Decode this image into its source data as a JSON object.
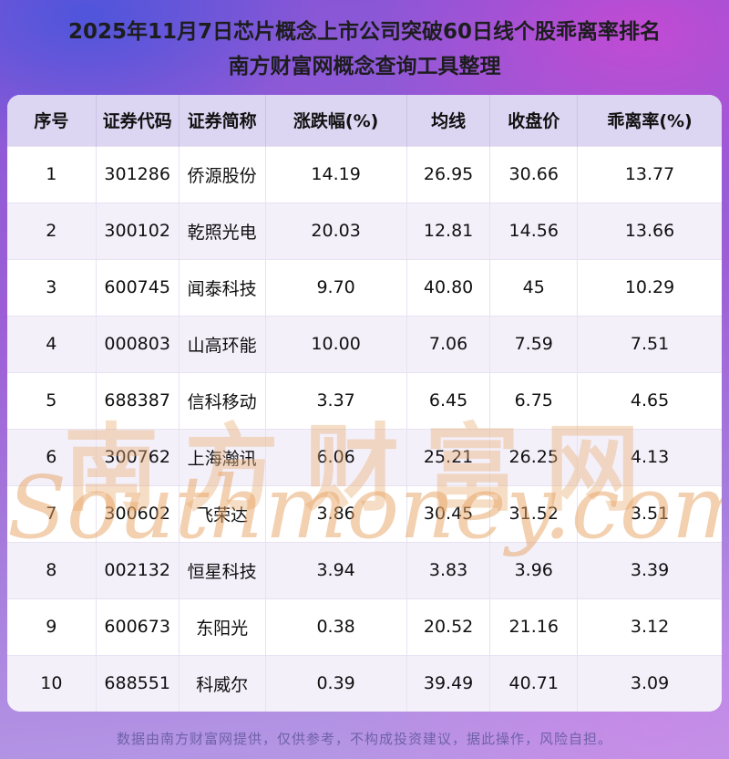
{
  "header": {
    "title_line1": "2025年11月7日芯片概念上市公司突破60日线个股乖离率排名",
    "title_line2": "南方财富网概念查询工具整理"
  },
  "table": {
    "columns": [
      "序号",
      "证券代码",
      "证券简称",
      "涨跌幅(%)",
      "均线",
      "收盘价",
      "乖离率(%)"
    ],
    "rows": [
      [
        "1",
        "301286",
        "侨源股份",
        "14.19",
        "26.95",
        "30.66",
        "13.77"
      ],
      [
        "2",
        "300102",
        "乾照光电",
        "20.03",
        "12.81",
        "14.56",
        "13.66"
      ],
      [
        "3",
        "600745",
        "闻泰科技",
        "9.70",
        "40.80",
        "45",
        "10.29"
      ],
      [
        "4",
        "000803",
        "山高环能",
        "10.00",
        "7.06",
        "7.59",
        "7.51"
      ],
      [
        "5",
        "688387",
        "信科移动",
        "3.37",
        "6.45",
        "6.75",
        "4.65"
      ],
      [
        "6",
        "300762",
        "上海瀚讯",
        "6.06",
        "25.21",
        "26.25",
        "4.13"
      ],
      [
        "7",
        "300602",
        "飞荣达",
        "3.86",
        "30.45",
        "31.52",
        "3.51"
      ],
      [
        "8",
        "002132",
        "恒星科技",
        "3.94",
        "3.83",
        "3.96",
        "3.39"
      ],
      [
        "9",
        "600673",
        "东阳光",
        "0.38",
        "20.52",
        "21.16",
        "3.12"
      ],
      [
        "10",
        "688551",
        "科威尔",
        "0.39",
        "39.49",
        "40.71",
        "3.09"
      ]
    ]
  },
  "watermark": {
    "text_cn": "南方财富网",
    "text_en": "Southmoney.com"
  },
  "footer": {
    "disclaimer": "数据由南方财富网提供，仅供参考，不构成投资建议，据此操作，风险自担。"
  },
  "colors": {
    "background_purple": "#9d5fd6",
    "header_row_bg": "#ddd6f2",
    "alt_row_bg": "#f4f0fa",
    "watermark_orange": "#e9b076",
    "footer_text": "#6f61a8"
  },
  "chart_data": {
    "type": "table",
    "title": "2025年11月7日芯片概念上市公司突破60日线个股乖离率排名",
    "subtitle": "南方财富网概念查询工具整理",
    "columns": [
      "序号",
      "证券代码",
      "证券简称",
      "涨跌幅(%)",
      "均线",
      "收盘价",
      "乖离率(%)"
    ],
    "rows": [
      [
        1,
        "301286",
        "侨源股份",
        14.19,
        26.95,
        30.66,
        13.77
      ],
      [
        2,
        "300102",
        "乾照光电",
        20.03,
        12.81,
        14.56,
        13.66
      ],
      [
        3,
        "600745",
        "闻泰科技",
        9.7,
        40.8,
        45,
        10.29
      ],
      [
        4,
        "000803",
        "山高环能",
        10.0,
        7.06,
        7.59,
        7.51
      ],
      [
        5,
        "688387",
        "信科移动",
        3.37,
        6.45,
        6.75,
        4.65
      ],
      [
        6,
        "300762",
        "上海瀚讯",
        6.06,
        25.21,
        26.25,
        4.13
      ],
      [
        7,
        "300602",
        "飞荣达",
        3.86,
        30.45,
        31.52,
        3.51
      ],
      [
        8,
        "002132",
        "恒星科技",
        3.94,
        3.83,
        3.96,
        3.39
      ],
      [
        9,
        "600673",
        "东阳光",
        0.38,
        20.52,
        21.16,
        3.12
      ],
      [
        10,
        "688551",
        "科威尔",
        0.39,
        39.49,
        40.71,
        3.09
      ]
    ]
  }
}
